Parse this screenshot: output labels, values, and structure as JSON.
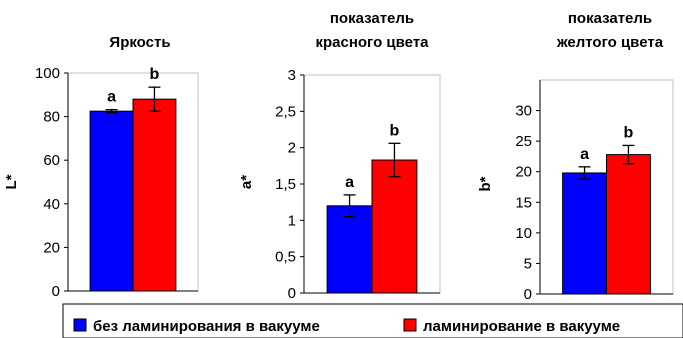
{
  "chart_data": [
    {
      "type": "bar",
      "title_lines": [
        "Яркость"
      ],
      "ylabel": "L*",
      "ylim": [
        0,
        100
      ],
      "yticks": [
        "0",
        "20",
        "40",
        "60",
        "80",
        "100"
      ],
      "series": [
        {
          "name": "без ламинирования в вакууме",
          "color": "#0000ff",
          "value": 82.5,
          "error": 0.7,
          "letter": "a"
        },
        {
          "name": "ламинирование в вакууме",
          "color": "#ff0000",
          "value": 88,
          "error": 5.5,
          "letter": "b"
        }
      ]
    },
    {
      "type": "bar",
      "title_lines": [
        "показатель",
        "красного цвета"
      ],
      "ylabel": "a*",
      "ylim": [
        0,
        3
      ],
      "yticks": [
        "0",
        "0,5",
        "1",
        "1,5",
        "2",
        "2,5",
        "3"
      ],
      "series": [
        {
          "name": "без ламинирования в вакууме",
          "color": "#0000ff",
          "value": 1.2,
          "error": 0.15,
          "letter": "a"
        },
        {
          "name": "ламинирование в вакууме",
          "color": "#ff0000",
          "value": 1.83,
          "error": 0.23,
          "letter": "b"
        }
      ]
    },
    {
      "type": "bar",
      "title_lines": [
        "показатель",
        "желтого цвета"
      ],
      "ylabel": "b*",
      "ylim": [
        0,
        35
      ],
      "yticks": [
        "0",
        "5",
        "10",
        "15",
        "20",
        "25",
        "30"
      ],
      "series": [
        {
          "name": "без ламинирования в вакууме",
          "color": "#0000ff",
          "value": 19.8,
          "error": 1.0,
          "letter": "a"
        },
        {
          "name": "ламинирование в вакууме",
          "color": "#ff0000",
          "value": 22.8,
          "error": 1.5,
          "letter": "b"
        }
      ]
    }
  ],
  "legend": {
    "items": [
      {
        "label": "без ламинирования в вакууме",
        "color": "#0000ff"
      },
      {
        "label": "ламинирование в вакууме",
        "color": "#ff0000"
      }
    ]
  }
}
